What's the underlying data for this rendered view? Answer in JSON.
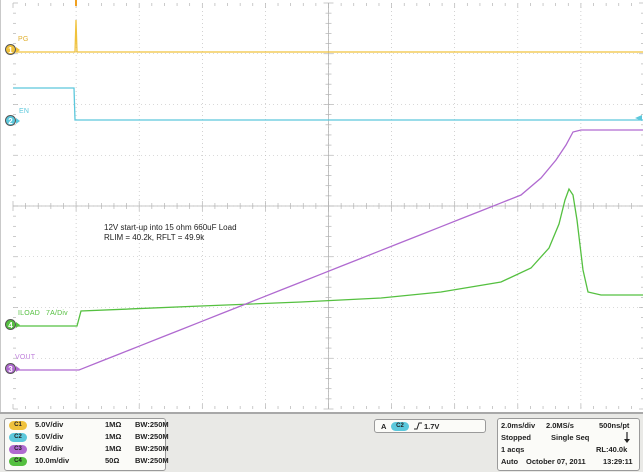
{
  "colors": {
    "ch1": "#f0c23c",
    "ch2": "#5cc8dc",
    "ch3": "#b06ad0",
    "ch4": "#55c040",
    "grid": "#b4b4b4"
  },
  "screen": {
    "channel_labels": {
      "pg": "PG",
      "en": "EN",
      "iload": "ILOAD",
      "ta_div": "7A/Div",
      "vout": "VOUT"
    },
    "markers": {
      "ch1": "1",
      "ch2": "2",
      "ch3": "3",
      "ch4": "4"
    },
    "annotation": {
      "line1": "12V start-up into 15 ohm 660uF Load",
      "line2": "RLIM = 40.2k, RFLT = 49.9k"
    }
  },
  "channels": [
    {
      "badge": "C1",
      "scale": "5.0V/div",
      "impedance": "1MΩ",
      "bandwidth": "BW:250M",
      "color": "#f0c23c"
    },
    {
      "badge": "C2",
      "scale": "5.0V/div",
      "impedance": "1MΩ",
      "bandwidth": "BW:250M",
      "color": "#5cc8dc"
    },
    {
      "badge": "C3",
      "scale": "2.0V/div",
      "impedance": "1MΩ",
      "bandwidth": "BW:250M",
      "color": "#b06ad0"
    },
    {
      "badge": "C4",
      "scale": "10.0m/div",
      "impedance": "50Ω",
      "bandwidth": "BW:250M",
      "color": "#55c040"
    }
  ],
  "trigger": {
    "mode": "A",
    "source": "C2",
    "slope_icon": "rising-edge-icon",
    "level": "1.7V"
  },
  "acquisition": {
    "timebase": "2.0ms/div",
    "sample_rate": "2.0MS/s",
    "resolution": "500ns/pt",
    "state": "Stopped",
    "mode": "Single Seq",
    "acqs": "1 acqs",
    "record_length": "RL:40.0k",
    "trigger_mode": "Auto",
    "date": "October 07, 2011",
    "time": "13:29:11"
  }
}
